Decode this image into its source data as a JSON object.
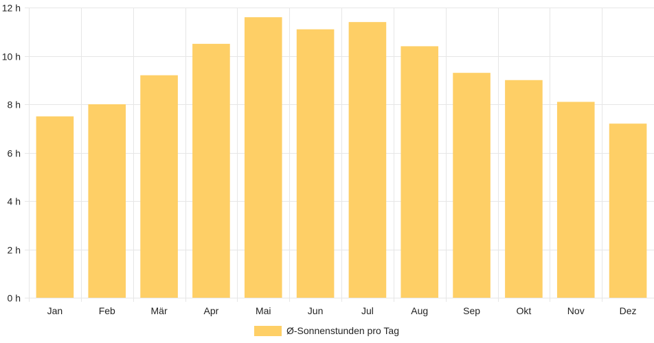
{
  "chart_data": {
    "type": "bar",
    "categories": [
      "Jan",
      "Feb",
      "Mär",
      "Apr",
      "Mai",
      "Jun",
      "Jul",
      "Aug",
      "Sep",
      "Okt",
      "Nov",
      "Dez"
    ],
    "series": [
      {
        "name": "Ø-Sonnenstunden pro Tag",
        "values": [
          7.5,
          8.0,
          9.2,
          10.5,
          11.6,
          11.1,
          11.4,
          10.4,
          9.3,
          9.0,
          8.1,
          7.2
        ]
      }
    ],
    "y_ticks": [
      "0 h",
      "2 h",
      "4 h",
      "6 h",
      "8 h",
      "10 h",
      "12 h"
    ],
    "ylim": [
      0,
      12
    ],
    "grid": true,
    "legend_position": "bottom",
    "colors": {
      "bar": "#fecf66",
      "grid": "#e6e6e6",
      "text": "#222222"
    }
  }
}
